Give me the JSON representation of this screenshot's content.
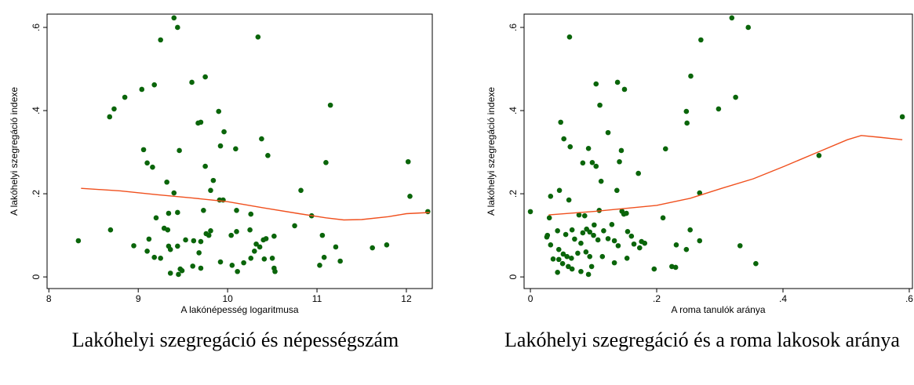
{
  "chart_data": [
    {
      "type": "scatter",
      "title": "Lakóhelyi szegregáció és népességszám",
      "x_label": "A lakónépesség logaritmusa",
      "y_label": "A lakóhelyi szegregáció indexe",
      "xlim": [
        7.98,
        12.29
      ],
      "ylim": [
        -0.028,
        0.632
      ],
      "xticks": [
        8,
        9,
        10,
        11,
        12
      ],
      "yticks": [
        0,
        {
          "value": 0.2,
          "label": ".2"
        },
        {
          "value": 0.4,
          "label": ".4"
        },
        {
          "value": 0.6,
          "label": ".6"
        }
      ],
      "points": {
        "color": "#0a650a",
        "x": [
          8.33,
          8.68,
          8.73,
          8.85,
          8.69,
          8.95,
          9.04,
          9.06,
          9.1,
          9.18,
          9.16,
          9.25,
          9.4,
          9.44,
          9.6,
          9.75,
          10.34,
          11.15,
          12.02,
          12.04,
          12.24,
          9.32,
          9.4,
          9.46,
          9.67,
          9.7,
          9.75,
          9.9,
          9.96,
          9.92,
          10.09,
          10.38,
          10.45,
          9.84,
          9.81,
          9.91,
          9.95,
          11.1,
          10.82,
          10.94,
          10.1,
          10.26,
          9.73,
          9.2,
          9.34,
          9.44,
          9.29,
          9.33,
          9.12,
          9.1,
          9.18,
          9.25,
          9.36,
          9.34,
          9.44,
          9.53,
          9.62,
          9.7,
          9.76,
          9.81,
          9.79,
          10.04,
          10.1,
          10.25,
          10.32,
          10.36,
          10.4,
          10.43,
          10.52,
          10.3,
          10.26,
          10.41,
          10.5,
          10.53,
          10.52,
          10.18,
          10.11,
          10.05,
          9.92,
          9.7,
          9.61,
          9.49,
          9.45,
          9.47,
          9.36,
          9.68,
          10.75,
          11.06,
          11.08,
          11.03,
          11.21,
          11.26,
          11.62,
          11.78
        ],
        "y": [
          0.087,
          0.385,
          0.404,
          0.432,
          0.113,
          0.075,
          0.451,
          0.306,
          0.274,
          0.462,
          0.264,
          0.57,
          0.623,
          0.6,
          0.468,
          0.481,
          0.577,
          0.413,
          0.277,
          0.194,
          0.157,
          0.228,
          0.202,
          0.304,
          0.37,
          0.372,
          0.266,
          0.398,
          0.349,
          0.315,
          0.308,
          0.332,
          0.292,
          0.232,
          0.208,
          0.185,
          0.185,
          0.275,
          0.208,
          0.147,
          0.16,
          0.151,
          0.16,
          0.142,
          0.153,
          0.155,
          0.117,
          0.113,
          0.091,
          0.062,
          0.047,
          0.045,
          0.066,
          0.074,
          0.074,
          0.089,
          0.087,
          0.085,
          0.104,
          0.111,
          0.1,
          0.1,
          0.109,
          0.113,
          0.079,
          0.072,
          0.089,
          0.092,
          0.098,
          0.062,
          0.045,
          0.043,
          0.045,
          0.013,
          0.021,
          0.034,
          0.013,
          0.028,
          0.036,
          0.021,
          0.026,
          0.015,
          0.006,
          0.019,
          0.009,
          0.058,
          0.123,
          0.1,
          0.047,
          0.028,
          0.072,
          0.038,
          0.07,
          0.077
        ]
      },
      "fit": {
        "color": "#f0501e",
        "x": [
          8.36,
          8.8,
          9.2,
          9.6,
          10,
          10.4,
          10.8,
          11.1,
          11.3,
          11.5,
          11.8,
          12,
          12.26
        ],
        "y": [
          0.213,
          0.207,
          0.198,
          0.19,
          0.181,
          0.166,
          0.152,
          0.142,
          0.137,
          0.138,
          0.145,
          0.152,
          0.155
        ]
      }
    },
    {
      "type": "scatter",
      "title": "Lakóhelyi szegregáció és a roma lakosok aránya",
      "x_label": "A roma tanulók aránya",
      "y_label": "A lakóhelyi szegregáció indexe",
      "xlim": [
        -0.01,
        0.605
      ],
      "ylim": [
        -0.028,
        0.632
      ],
      "xticks": [
        0,
        {
          "value": 0.2,
          "label": ".2"
        },
        {
          "value": 0.4,
          "label": ".4"
        },
        {
          "value": 0.6,
          "label": ".6"
        }
      ],
      "yticks": [
        0,
        {
          "value": 0.2,
          "label": ".2"
        },
        {
          "value": 0.4,
          "label": ".4"
        },
        {
          "value": 0.6,
          "label": ".6"
        }
      ],
      "points": {
        "color": "#0a650a",
        "x": [
          0.062,
          0.319,
          0.345,
          0.27,
          0.254,
          0.104,
          0.138,
          0.149,
          0.325,
          0.298,
          0.11,
          0.247,
          0.248,
          0.589,
          0.048,
          0.123,
          0.053,
          0.063,
          0.092,
          0.144,
          0.214,
          0.457,
          0.083,
          0.098,
          0.104,
          0.141,
          0.112,
          0.171,
          0.137,
          0.046,
          0.268,
          0.032,
          0.061,
          0.109,
          0.145,
          0.148,
          0.0,
          0.077,
          0.086,
          0.152,
          0.21,
          0.03,
          0.253,
          0.101,
          0.129,
          0.089,
          0.094,
          0.116,
          0.154,
          0.16,
          0.066,
          0.056,
          0.043,
          0.027,
          0.026,
          0.083,
          0.07,
          0.08,
          0.1,
          0.107,
          0.123,
          0.133,
          0.139,
          0.164,
          0.176,
          0.173,
          0.181,
          0.268,
          0.231,
          0.247,
          0.332,
          0.032,
          0.045,
          0.052,
          0.058,
          0.065,
          0.036,
          0.045,
          0.075,
          0.088,
          0.094,
          0.114,
          0.133,
          0.153,
          0.051,
          0.06,
          0.066,
          0.08,
          0.097,
          0.092,
          0.043,
          0.196,
          0.224,
          0.23,
          0.357
        ],
        "y": [
          0.577,
          0.623,
          0.6,
          0.57,
          0.483,
          0.464,
          0.468,
          0.451,
          0.432,
          0.404,
          0.413,
          0.398,
          0.37,
          0.385,
          0.372,
          0.347,
          0.332,
          0.313,
          0.309,
          0.304,
          0.308,
          0.292,
          0.274,
          0.275,
          0.266,
          0.277,
          0.23,
          0.249,
          0.208,
          0.208,
          0.202,
          0.194,
          0.185,
          0.16,
          0.158,
          0.151,
          0.157,
          0.149,
          0.147,
          0.153,
          0.142,
          0.142,
          0.113,
          0.125,
          0.126,
          0.115,
          0.108,
          0.111,
          0.109,
          0.098,
          0.113,
          0.102,
          0.111,
          0.1,
          0.096,
          0.106,
          0.091,
          0.081,
          0.1,
          0.089,
          0.092,
          0.087,
          0.075,
          0.079,
          0.085,
          0.07,
          0.081,
          0.087,
          0.077,
          0.066,
          0.075,
          0.077,
          0.066,
          0.055,
          0.049,
          0.045,
          0.043,
          0.042,
          0.057,
          0.06,
          0.049,
          0.049,
          0.034,
          0.045,
          0.032,
          0.025,
          0.019,
          0.013,
          0.025,
          0.006,
          0.011,
          0.019,
          0.025,
          0.023,
          0.032
        ]
      },
      "fit": {
        "color": "#f0501e",
        "x": [
          0.029,
          0.104,
          0.2,
          0.253,
          0.303,
          0.353,
          0.402,
          0.452,
          0.502,
          0.524,
          0.552,
          0.589
        ],
        "y": [
          0.149,
          0.158,
          0.172,
          0.189,
          0.213,
          0.236,
          0.266,
          0.298,
          0.33,
          0.34,
          0.336,
          0.33
        ]
      }
    }
  ]
}
